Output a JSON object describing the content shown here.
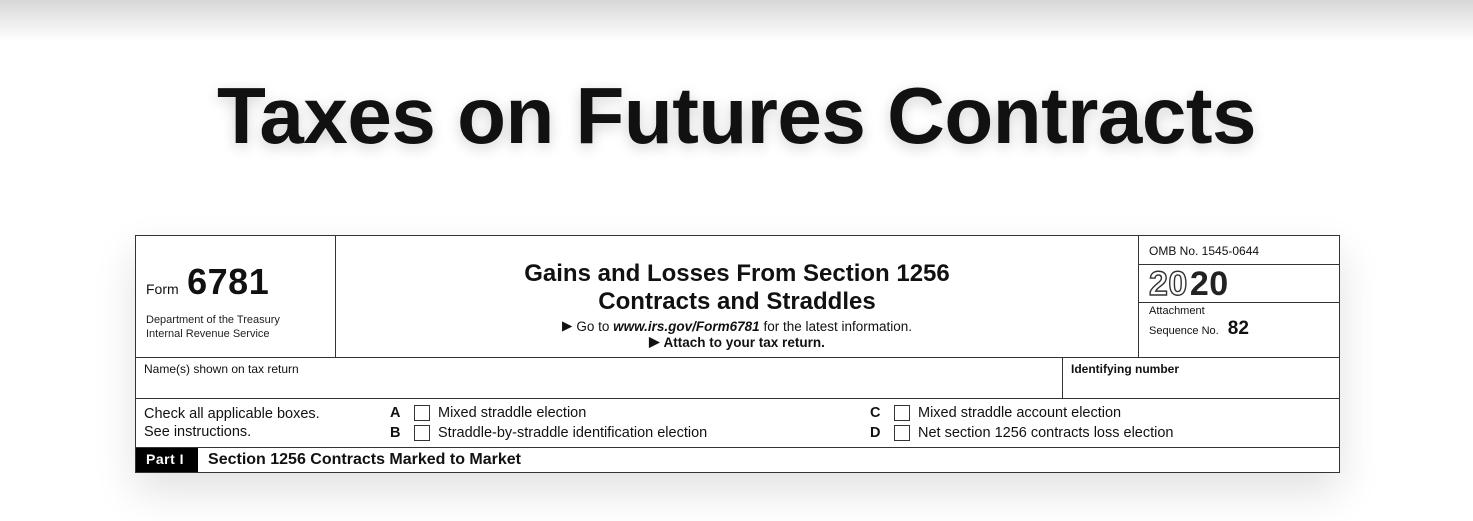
{
  "slide": {
    "title": "Taxes on Futures Contracts",
    "background_top": "#d7d7d7",
    "background": "#ffffff"
  },
  "form": {
    "form_word": "Form",
    "number": "6781",
    "dept_line1": "Department of the Treasury",
    "dept_line2": "Internal Revenue Service",
    "title_line1": "Gains and Losses From Section 1256",
    "title_line2": "Contracts and Straddles",
    "goto_prefix": "Go to ",
    "goto_url": "www.irs.gov/Form6781",
    "goto_suffix": " for the latest information.",
    "attach": "Attach to your tax return.",
    "omb": "OMB No. 1545-0644",
    "year_outline": "20",
    "year_solid": "20",
    "attachment_label": "Attachment",
    "sequence_label": "Sequence No.",
    "sequence_no": "82",
    "names_label": "Name(s) shown on tax return",
    "identifying_label": "Identifying number",
    "check_instr_line1": "Check all applicable boxes.",
    "check_instr_line2": "See instructions.",
    "options": {
      "A": "Mixed straddle election",
      "B": "Straddle-by-straddle identification election",
      "C": "Mixed straddle account election",
      "D": "Net section 1256 contracts loss election"
    },
    "part_badge": "Part I",
    "part_title": "Section 1256 Contracts Marked to Market"
  },
  "style": {
    "title_fontsize": 80,
    "title_color": "#111111",
    "form_border": "#333333",
    "checkbox_border": "#333333",
    "badge_bg": "#000000",
    "badge_fg": "#ffffff"
  }
}
